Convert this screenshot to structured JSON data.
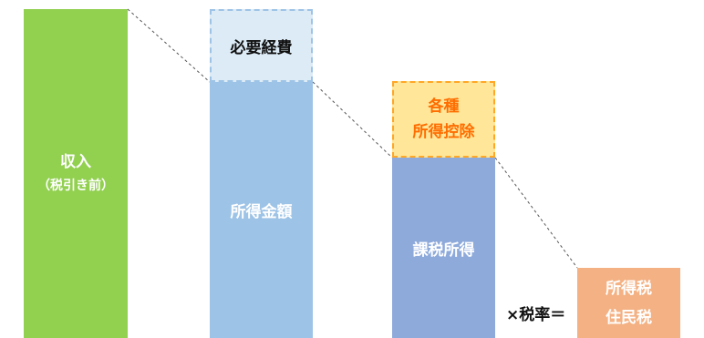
{
  "blocks": {
    "income": {
      "label": "収入",
      "sub": "（税引き前）"
    },
    "expenses": {
      "label": "必要経費"
    },
    "shotoku": {
      "label": "所得金額"
    },
    "deduction": {
      "line1": "各種",
      "line2": "所得控除"
    },
    "taxable": {
      "label": "課税所得"
    },
    "tax": {
      "line1": "所得税",
      "line2": "住民税"
    }
  },
  "operator": {
    "label": "×税率＝"
  },
  "colors": {
    "income": "#92d050",
    "expenses_fill": "#dcebf6",
    "expenses_border": "#9dc3e6",
    "shotoku": "#9dc3e6",
    "deduction_fill": "#ffe699",
    "deduction_border": "#ffa726",
    "deduction_text": "#ff6d00",
    "taxable": "#8eaadb",
    "tax": "#f4b183"
  }
}
